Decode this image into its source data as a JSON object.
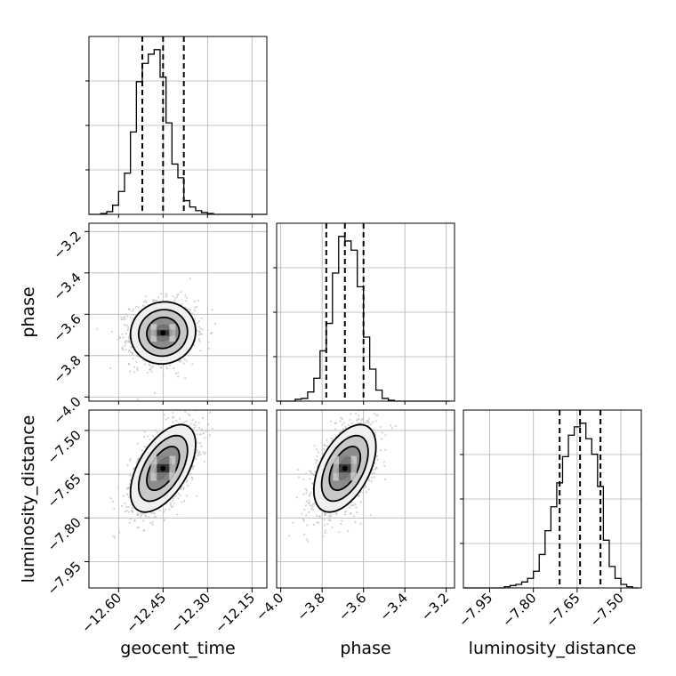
{
  "chart_data": {
    "type": "corner",
    "parameters": [
      "geocent_time",
      "phase",
      "luminosity_distance"
    ],
    "grid": true,
    "quantile_lines": "dashed",
    "ranges": {
      "geocent_time": [
        -12.7,
        -12.1
      ],
      "phase": [
        -4.02,
        -3.16
      ],
      "luminosity_distance": [
        -8.04,
        -7.43
      ]
    },
    "ticks": {
      "geocent_time": [
        -12.6,
        -12.45,
        -12.3,
        -12.15
      ],
      "phase": [
        -4.0,
        -3.8,
        -3.6,
        -3.4,
        -3.2
      ],
      "luminosity_distance": [
        -7.95,
        -7.8,
        -7.65,
        -7.5
      ]
    },
    "tick_labels": {
      "geocent_time": [
        "−12.60",
        "−12.45",
        "−12.30",
        "−12.15"
      ],
      "phase": [
        "−4.0",
        "−3.8",
        "−3.6",
        "−3.4",
        "−3.2"
      ],
      "luminosity_distance": [
        "−7.95",
        "−7.80",
        "−7.65",
        "−7.50"
      ]
    },
    "histograms": {
      "geocent_time": {
        "edges": [
          -12.7,
          -12.68,
          -12.66,
          -12.64,
          -12.62,
          -12.6,
          -12.58,
          -12.56,
          -12.54,
          -12.52,
          -12.5,
          -12.48,
          -12.46,
          -12.44,
          -12.42,
          -12.4,
          -12.38,
          -12.36,
          -12.34,
          -12.32,
          -12.3,
          -12.28,
          -12.26,
          -12.24,
          -12.22,
          -12.2,
          -12.18,
          -12.16,
          -12.14,
          -12.12,
          -12.1
        ],
        "counts": [
          0,
          0,
          1,
          3,
          10,
          25,
          45,
          90,
          145,
          165,
          175,
          180,
          150,
          100,
          55,
          40,
          15,
          8,
          4,
          2,
          1,
          0,
          0,
          0,
          0,
          0,
          0,
          0,
          0,
          0
        ],
        "quantiles": [
          -12.52,
          -12.45,
          -12.38
        ]
      },
      "phase": {
        "edges": [
          -4.02,
          -3.99,
          -3.96,
          -3.93,
          -3.9,
          -3.87,
          -3.84,
          -3.81,
          -3.78,
          -3.75,
          -3.72,
          -3.69,
          -3.66,
          -3.63,
          -3.6,
          -3.57,
          -3.54,
          -3.51,
          -3.48,
          -3.45,
          -3.42,
          -3.39,
          -3.36,
          -3.33,
          -3.3,
          -3.27,
          -3.24,
          -3.21,
          -3.18
        ],
        "counts": [
          0,
          0,
          0,
          2,
          3,
          10,
          25,
          55,
          85,
          140,
          180,
          175,
          165,
          125,
          70,
          35,
          12,
          3,
          1,
          0,
          0,
          0,
          0,
          0,
          0,
          0,
          0,
          0
        ],
        "quantiles": [
          -3.78,
          -3.69,
          -3.6
        ]
      },
      "luminosity_distance": {
        "edges": [
          -8.04,
          -8.02,
          -8.0,
          -7.98,
          -7.96,
          -7.94,
          -7.92,
          -7.9,
          -7.88,
          -7.86,
          -7.84,
          -7.82,
          -7.8,
          -7.78,
          -7.76,
          -7.74,
          -7.72,
          -7.7,
          -7.68,
          -7.66,
          -7.64,
          -7.62,
          -7.6,
          -7.58,
          -7.56,
          -7.54,
          -7.52,
          -7.5,
          -7.48,
          -7.46,
          -7.44
        ],
        "counts": [
          0,
          0,
          0,
          0,
          0,
          0,
          0,
          1,
          2,
          3,
          5,
          8,
          14,
          28,
          48,
          68,
          88,
          110,
          128,
          135,
          138,
          125,
          112,
          85,
          40,
          18,
          8,
          3,
          1,
          0
        ],
        "quantiles": [
          -7.71,
          -7.64,
          -7.57
        ]
      }
    },
    "pairs": [
      {
        "x": "geocent_time",
        "y": "phase",
        "mean": [
          -12.45,
          -3.69
        ],
        "sd": [
          0.055,
          0.075
        ],
        "corr": 0.05
      },
      {
        "x": "geocent_time",
        "y": "luminosity_distance",
        "mean": [
          -12.45,
          -7.63
        ],
        "sd": [
          0.055,
          0.075
        ],
        "corr": 0.55
      },
      {
        "x": "phase",
        "y": "luminosity_distance",
        "mean": [
          -3.69,
          -7.63
        ],
        "sd": [
          0.075,
          0.075
        ],
        "corr": 0.5
      }
    ],
    "contour_levels": [
      0.5,
      1.0,
      1.5,
      2.0
    ],
    "colors": {
      "line": "#000000",
      "grid": "#b0b0b0",
      "points": "#bfbfbf",
      "fill_light": "#f0f0f0"
    }
  }
}
